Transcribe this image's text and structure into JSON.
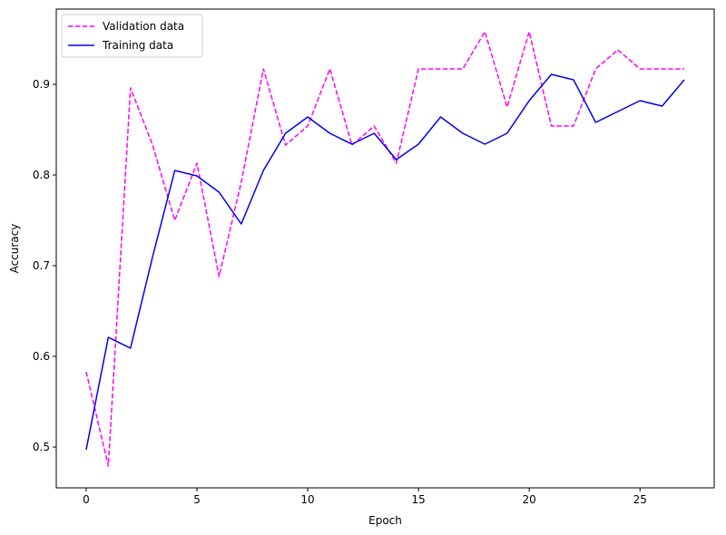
{
  "chart_data": {
    "type": "line",
    "title": "",
    "xlabel": "Epoch",
    "ylabel": "Accuracy",
    "xlim": [
      -1.35,
      28.35
    ],
    "ylim": [
      0.455,
      0.983
    ],
    "xticks": [
      0,
      5,
      10,
      15,
      20,
      25
    ],
    "yticks": [
      0.5,
      0.6,
      0.7,
      0.8,
      0.9
    ],
    "xtick_labels": [
      "0",
      "5",
      "10",
      "15",
      "20",
      "25"
    ],
    "ytick_labels": [
      "0.5",
      "0.6",
      "0.7",
      "0.8",
      "0.9"
    ],
    "grid": false,
    "legend_position": "top-left",
    "series": [
      {
        "name": "Validation data",
        "color": "#ff00ff",
        "dash": "dashed",
        "x": [
          0,
          1,
          2,
          3,
          4,
          5,
          6,
          7,
          8,
          9,
          10,
          11,
          12,
          13,
          14,
          15,
          16,
          17,
          18,
          19,
          20,
          21,
          22,
          23,
          24,
          25,
          26,
          27
        ],
        "y": [
          0.583,
          0.479,
          0.896,
          0.833,
          0.75,
          0.813,
          0.688,
          0.792,
          0.917,
          0.833,
          0.854,
          0.917,
          0.833,
          0.854,
          0.813,
          0.917,
          0.917,
          0.917,
          0.958,
          0.875,
          0.958,
          0.854,
          0.854,
          0.917,
          0.938,
          0.917,
          0.917,
          0.917
        ]
      },
      {
        "name": "Training data",
        "color": "#0000ee",
        "dash": "solid",
        "x": [
          0,
          1,
          2,
          3,
          4,
          5,
          6,
          7,
          8,
          9,
          10,
          11,
          12,
          13,
          14,
          15,
          16,
          17,
          18,
          19,
          20,
          21,
          22,
          23,
          24,
          25,
          26,
          27
        ],
        "y": [
          0.497,
          0.621,
          0.609,
          0.71,
          0.805,
          0.799,
          0.781,
          0.746,
          0.805,
          0.846,
          0.864,
          0.846,
          0.834,
          0.846,
          0.817,
          0.834,
          0.864,
          0.846,
          0.834,
          0.846,
          0.882,
          0.911,
          0.905,
          0.858,
          0.87,
          0.882,
          0.876,
          0.905
        ]
      }
    ]
  }
}
